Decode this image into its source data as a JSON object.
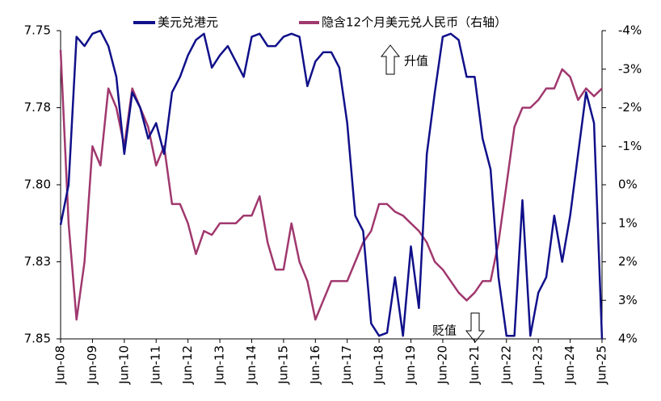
{
  "chart_data": {
    "type": "line",
    "x": [
      "2008-06",
      "2008-09",
      "2008-12",
      "2009-03",
      "2009-06",
      "2009-09",
      "2009-12",
      "2010-03",
      "2010-06",
      "2010-09",
      "2010-12",
      "2011-03",
      "2011-06",
      "2011-09",
      "2011-12",
      "2012-03",
      "2012-06",
      "2012-09",
      "2012-12",
      "2013-03",
      "2013-06",
      "2013-09",
      "2013-12",
      "2014-03",
      "2014-06",
      "2014-09",
      "2014-12",
      "2015-03",
      "2015-06",
      "2015-09",
      "2015-12",
      "2016-03",
      "2016-06",
      "2016-09",
      "2016-12",
      "2017-03",
      "2017-06",
      "2017-09",
      "2017-12",
      "2018-03",
      "2018-06",
      "2018-09",
      "2018-12",
      "2019-03",
      "2019-06",
      "2019-09",
      "2019-12",
      "2020-03",
      "2020-06",
      "2020-09",
      "2020-12",
      "2021-03",
      "2021-06",
      "2021-09",
      "2021-12",
      "2022-03",
      "2022-06",
      "2022-09",
      "2022-12",
      "2023-03",
      "2023-06",
      "2023-09",
      "2023-12",
      "2024-03",
      "2024-06",
      "2024-09",
      "2024-12",
      "2025-03",
      "2025-06"
    ],
    "series": [
      {
        "name": "美元兑港元",
        "color": "#10108a",
        "values": [
          7.813,
          7.8,
          7.752,
          7.755,
          7.751,
          7.75,
          7.755,
          7.765,
          7.79,
          7.77,
          7.775,
          7.785,
          7.78,
          7.79,
          7.77,
          7.765,
          7.758,
          7.753,
          7.751,
          7.762,
          7.758,
          7.755,
          7.76,
          7.765,
          7.752,
          7.751,
          7.755,
          7.755,
          7.752,
          7.751,
          7.752,
          7.768,
          7.76,
          7.757,
          7.757,
          7.762,
          7.78,
          7.81,
          7.815,
          7.845,
          7.849,
          7.848,
          7.83,
          7.849,
          7.82,
          7.84,
          7.79,
          7.77,
          7.752,
          7.751,
          7.753,
          7.765,
          7.765,
          7.785,
          7.795,
          7.83,
          7.849,
          7.849,
          7.805,
          7.849,
          7.835,
          7.83,
          7.81,
          7.825,
          7.81,
          7.79,
          7.77,
          7.78,
          7.85
        ]
      },
      {
        "name": "隐含12个月美元兑人民币（右轴）",
        "color": "#a0386e",
        "axis": "y2",
        "values": [
          -3.5,
          1,
          3.5,
          2,
          -1,
          -0.5,
          -2.5,
          -2,
          -1,
          -2.5,
          -2,
          -1.5,
          -0.5,
          -1,
          0.5,
          0.5,
          1,
          1.8,
          1.2,
          1.3,
          1,
          1,
          1,
          0.8,
          0.8,
          0.3,
          1.5,
          2.2,
          2.2,
          1,
          2,
          2.5,
          3.5,
          3,
          2.5,
          2.5,
          2.5,
          2,
          1.5,
          1.2,
          0.5,
          0.5,
          0.7,
          0.8,
          1,
          1.2,
          1.5,
          2,
          2.2,
          2.5,
          2.8,
          3,
          2.8,
          2.5,
          2.5,
          1.5,
          0,
          -1.5,
          -2,
          -2,
          -2.2,
          -2.5,
          -2.5,
          -3,
          -2.8,
          -2.2,
          -2.5,
          -2.3,
          -2.5
        ]
      }
    ],
    "xlim": [
      "2008-06",
      "2025-06"
    ],
    "xticks": [
      {
        "value": "2008-06",
        "label": "Jun-08"
      },
      {
        "value": "2009-06",
        "label": "Jun-09"
      },
      {
        "value": "2010-06",
        "label": "Jun-10"
      },
      {
        "value": "2011-06",
        "label": "Jun-11"
      },
      {
        "value": "2012-06",
        "label": "Jun-12"
      },
      {
        "value": "2013-06",
        "label": "Jun-13"
      },
      {
        "value": "2014-06",
        "label": "Jun-14"
      },
      {
        "value": "2015-06",
        "label": "Jun-15"
      },
      {
        "value": "2016-06",
        "label": "Jun-16"
      },
      {
        "value": "2017-06",
        "label": "Jun-17"
      },
      {
        "value": "2018-06",
        "label": "Jun-18"
      },
      {
        "value": "2019-06",
        "label": "Jun-19"
      },
      {
        "value": "2020-06",
        "label": "Jun-20"
      },
      {
        "value": "2021-06",
        "label": "Jun-21"
      },
      {
        "value": "2022-06",
        "label": "Jun-22"
      },
      {
        "value": "2023-06",
        "label": "Jun-23"
      },
      {
        "value": "2024-06",
        "label": "Jun-24"
      },
      {
        "value": "2025-06",
        "label": "Jun-25"
      }
    ],
    "ylim": [
      7.85,
      7.75
    ],
    "yticks": [
      7.75,
      {
        "value": 7.775,
        "label": "7.78"
      },
      {
        "value": 7.8,
        "label": "7.80"
      },
      {
        "value": 7.825,
        "label": "7.83"
      },
      7.85
    ],
    "y2lim": [
      4,
      -4
    ],
    "y2ticks": [
      {
        "value": -4,
        "label": "-4%"
      },
      {
        "value": -3,
        "label": "-3%"
      },
      {
        "value": -2,
        "label": "-2%"
      },
      {
        "value": -1,
        "label": "-1%"
      },
      {
        "value": 0,
        "label": "0%"
      },
      {
        "value": 1,
        "label": "1%"
      },
      {
        "value": 2,
        "label": "2%"
      },
      {
        "value": 3,
        "label": "3%"
      },
      {
        "value": 4,
        "label": "4%"
      }
    ],
    "y2_tick_color": "#e00000",
    "annotations": [
      "升值",
      "贬值"
    ]
  }
}
